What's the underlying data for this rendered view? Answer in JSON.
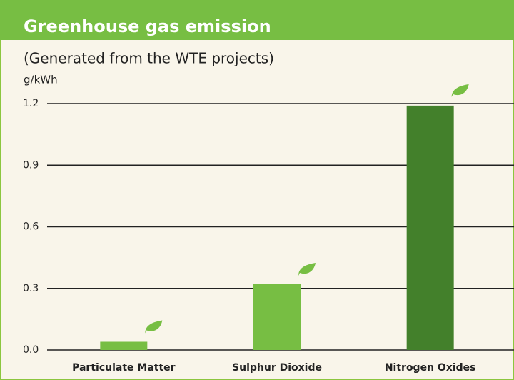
{
  "chart_data": {
    "type": "bar",
    "title": "Greenhouse gas emission",
    "subtitle": "(Generated from the WTE projects)",
    "y_label": "g/kWh",
    "categories": [
      "Particulate Matter",
      "Sulphur Dioxide",
      "Nitrogen Oxides"
    ],
    "values": [
      0.04,
      0.32,
      1.19
    ],
    "colors": [
      "#77be43",
      "#77be43",
      "#43802b"
    ],
    "ylim": [
      0,
      1.2
    ],
    "yticks": [
      {
        "value": 0,
        "label": "0.0"
      },
      0.3,
      0.6,
      0.9,
      1.2
    ],
    "grid": true
  }
}
